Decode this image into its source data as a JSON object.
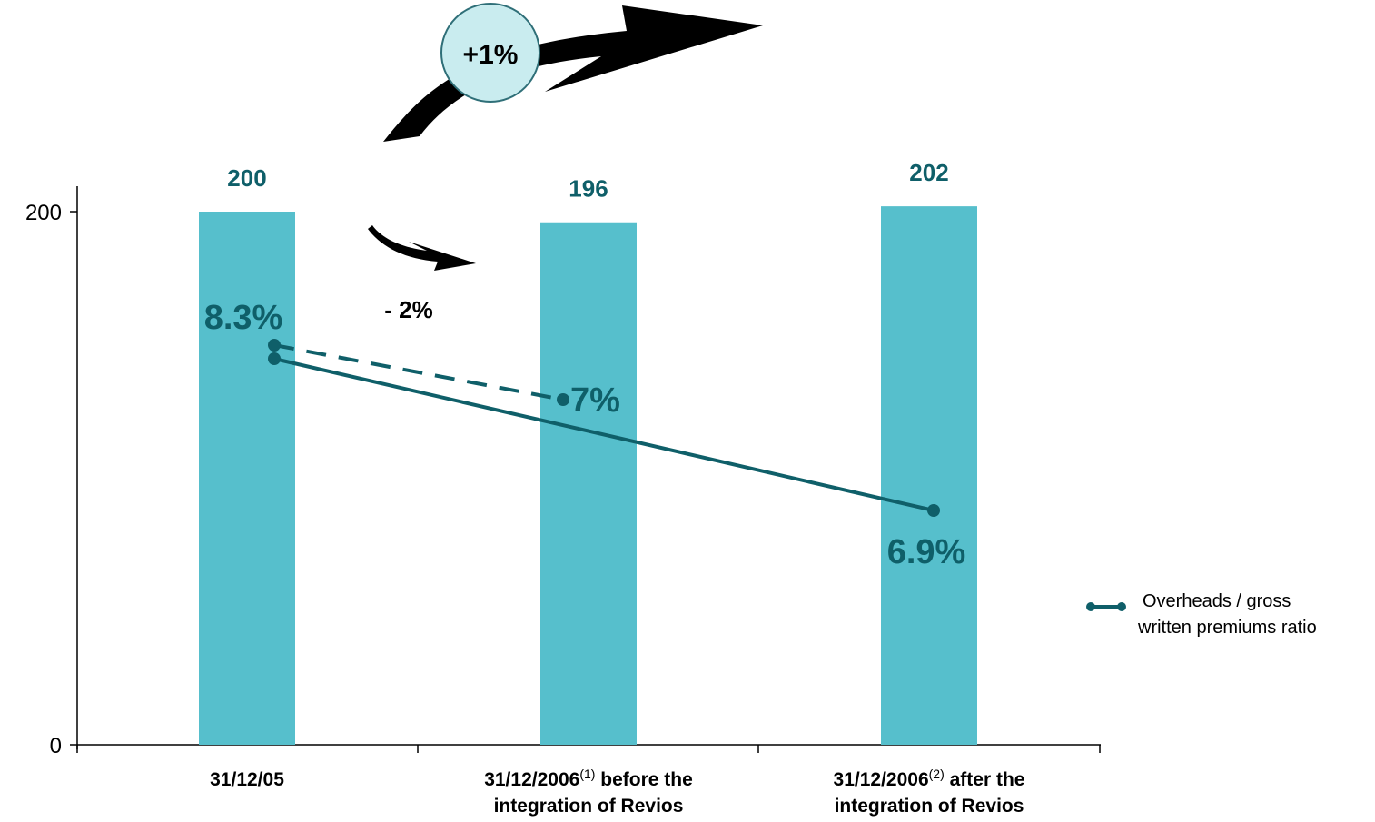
{
  "chart_data": {
    "type": "bar",
    "categories": [
      {
        "main": "31/12/05",
        "note": "",
        "suffix": "",
        "line2": ""
      },
      {
        "main": "31/12/2006",
        "note": "(1)",
        "suffix": " before the",
        "line2": "integration of Revios"
      },
      {
        "main": "31/12/2006",
        "note": "(2)",
        "suffix": " after the",
        "line2": "integration of Revios"
      }
    ],
    "values": [
      200,
      196,
      202
    ],
    "value_labels": [
      "200",
      "196",
      "202"
    ],
    "y_ticks": [
      0,
      200
    ],
    "y_tick_labels": [
      "0",
      "200"
    ],
    "ylim": [
      0,
      200
    ],
    "ratio_series": {
      "name": "Overheads / gross written premiums ratio",
      "legend_lines": [
        "Overheads / gross",
        "written premiums ratio"
      ],
      "solid": {
        "from": "31/12/05",
        "to": "31/12/2006 after the integration of Revios",
        "values": [
          8.3,
          6.9
        ]
      },
      "dashed": {
        "from": "31/12/05",
        "to": "31/12/2006 before the integration of Revios",
        "values": [
          8.3,
          7.0
        ]
      },
      "labels": [
        "8.3%",
        "7%",
        "6.9%"
      ]
    },
    "annotations": {
      "increase": "+1%",
      "decrease": "- 2%"
    },
    "grid": false,
    "legend_position": "right",
    "colors": {
      "bar": "#56bfcc",
      "line": "#0f5f69",
      "value_text": "#0f5f69",
      "badge_fill": "#c9ecef"
    }
  }
}
